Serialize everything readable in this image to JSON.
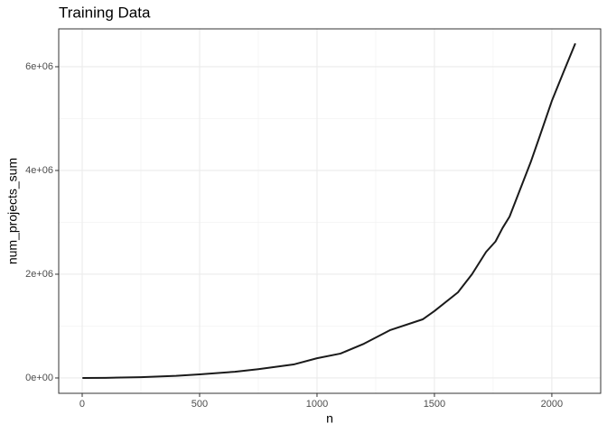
{
  "chart_data": {
    "type": "line",
    "title": "Training Data",
    "x_label": "n",
    "y_label": "num_projects_sum",
    "x": [
      1,
      100,
      250,
      400,
      500,
      650,
      750,
      900,
      1000,
      1100,
      1200,
      1310,
      1450,
      1500,
      1600,
      1660,
      1720,
      1760,
      1790,
      1820,
      1850,
      1880,
      1910,
      1950,
      2000,
      2050,
      2100
    ],
    "series": [
      {
        "name": "num_projects_sum",
        "color": "#1a1a1a",
        "values": [
          0,
          2000,
          15000,
          40000,
          70000,
          120000,
          170000,
          260000,
          380000,
          470000,
          660000,
          920000,
          1130000,
          1290000,
          1650000,
          2000000,
          2430000,
          2630000,
          2890000,
          3110000,
          3460000,
          3810000,
          4160000,
          4680000,
          5340000,
          5900000,
          6450000
        ]
      }
    ],
    "xlim": [
      -100,
      2208
    ],
    "ylim": [
      -296000,
      6730000
    ],
    "xticks": [
      0,
      500,
      1000,
      1500,
      2000
    ],
    "yticks": [
      {
        "value": 0,
        "label": "0e+00"
      },
      {
        "value": 2000000,
        "label": "2e+06"
      },
      {
        "value": 4000000,
        "label": "4e+06"
      },
      {
        "value": 6000000,
        "label": "6e+06"
      }
    ],
    "grid": true
  }
}
